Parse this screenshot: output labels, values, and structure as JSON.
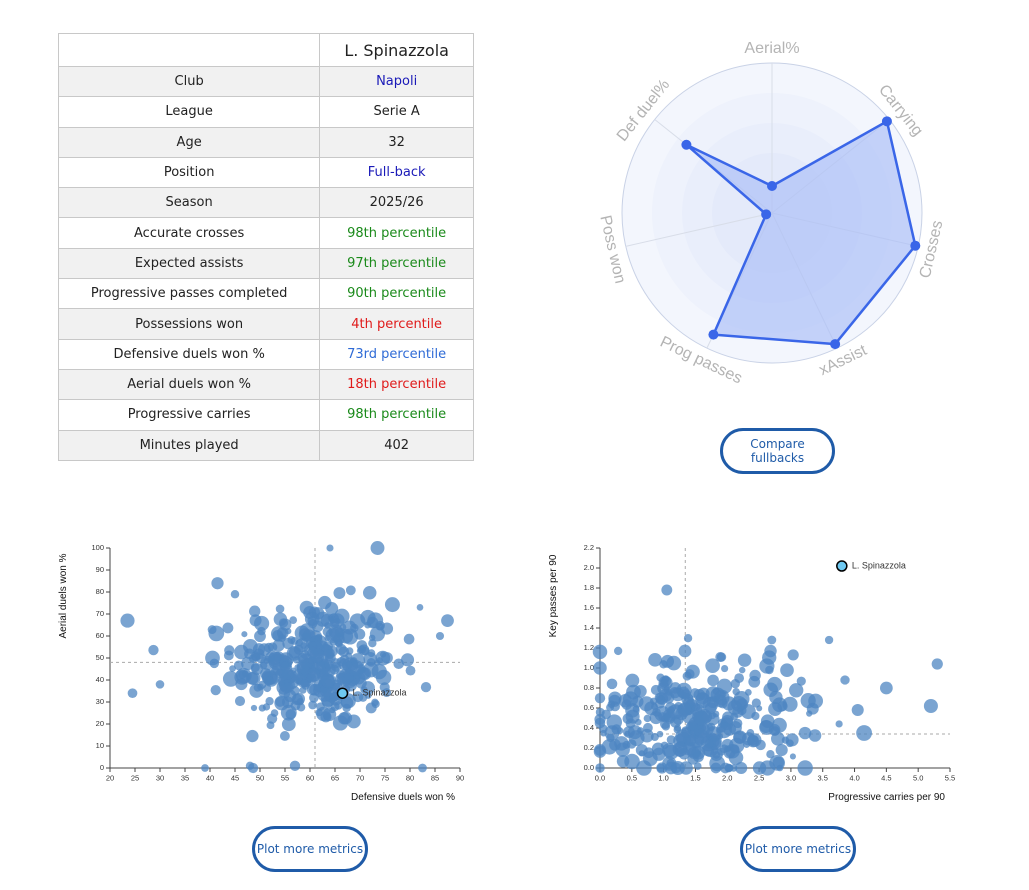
{
  "table": {
    "player": "L. Spinazzola",
    "rows": [
      {
        "label": "Club",
        "value": "Napoli",
        "color": "#1a1ab8"
      },
      {
        "label": "League",
        "value": "Serie A",
        "color": "#222222"
      },
      {
        "label": "Age",
        "value": "32",
        "color": "#222222"
      },
      {
        "label": "Position",
        "value": "Full-back",
        "color": "#1a1ab8"
      },
      {
        "label": "Season",
        "value": "2025/26",
        "color": "#222222"
      },
      {
        "label": "Accurate crosses",
        "value": "98th percentile",
        "color": "#1a8a1a"
      },
      {
        "label": "Expected assists",
        "value": "97th percentile",
        "color": "#1a8a1a"
      },
      {
        "label": "Progressive passes completed",
        "value": "90th percentile",
        "color": "#1a8a1a"
      },
      {
        "label": "Possessions won",
        "value": "4th percentile",
        "color": "#e01b1b"
      },
      {
        "label": "Defensive duels won %",
        "value": "73rd percentile",
        "color": "#2f6bd6"
      },
      {
        "label": "Aerial duels won %",
        "value": "18th percentile",
        "color": "#e01b1b"
      },
      {
        "label": "Progressive carries",
        "value": "98th percentile",
        "color": "#1a8a1a"
      },
      {
        "label": "Minutes played",
        "value": "402",
        "color": "#222222"
      }
    ]
  },
  "buttons": {
    "compare": "Compare fullbacks",
    "plot_more_left": "Plot more metrics",
    "plot_more_right": "Plot more metrics"
  },
  "colors": {
    "accent": "#3a66e8",
    "fill": "#a9bdf7",
    "dots": "#4e86c1",
    "button": "#1f5ba8"
  },
  "chart_data": [
    {
      "type": "radar",
      "axes": [
        "Aerial%",
        "Carrying",
        "Crosses",
        "xAssist",
        "Prog passes",
        "Poss won",
        "Def duel%"
      ],
      "values": [
        18,
        98,
        98,
        97,
        90,
        4,
        73
      ],
      "range": [
        0,
        100
      ]
    },
    {
      "type": "scatter",
      "xlabel": "Defensive duels won %",
      "ylabel": "Aerial duels won %",
      "xlim": [
        20,
        90
      ],
      "ylim": [
        0,
        100
      ],
      "xticks": [
        20,
        25,
        30,
        35,
        40,
        45,
        50,
        55,
        60,
        65,
        70,
        75,
        80,
        85,
        90
      ],
      "yticks": [
        0,
        10,
        20,
        30,
        40,
        50,
        60,
        70,
        80,
        90,
        100
      ],
      "ref_x": 61,
      "ref_y": 48,
      "highlight": {
        "name": "L. Spinazzola",
        "x": 66.5,
        "y": 34
      },
      "cluster": {
        "x_mean": 61,
        "x_sd": 8,
        "y_mean": 47,
        "y_sd": 14,
        "count": 360
      },
      "outliers": [
        [
          23.5,
          67
        ],
        [
          24.5,
          34
        ],
        [
          30,
          38
        ],
        [
          40.5,
          50
        ],
        [
          41.5,
          84
        ],
        [
          45,
          79
        ],
        [
          64,
          100
        ],
        [
          73.5,
          100
        ],
        [
          82,
          73
        ],
        [
          87.5,
          67
        ],
        [
          86,
          60
        ],
        [
          57,
          1
        ],
        [
          82.5,
          0
        ],
        [
          48,
          1
        ],
        [
          39,
          0
        ]
      ]
    },
    {
      "type": "scatter",
      "xlabel": "Progressive carries per 90",
      "ylabel": "Key passes per 90",
      "xlim": [
        0,
        5.5
      ],
      "ylim": [
        0,
        2.2
      ],
      "xticks": [
        0.0,
        0.5,
        1.0,
        1.5,
        2.0,
        2.5,
        3.0,
        3.5,
        4.0,
        4.5,
        5.0,
        5.5
      ],
      "yticks": [
        0.0,
        0.2,
        0.4,
        0.6,
        0.8,
        1.0,
        1.2,
        1.4,
        1.6,
        1.8,
        2.0,
        2.2
      ],
      "ref_x": 1.34,
      "ref_y": 0.34,
      "highlight": {
        "name": "L. Spinazzola",
        "x": 3.8,
        "y": 2.02
      },
      "cluster": {
        "x_mean": 1.5,
        "x_sd": 0.8,
        "y_mean": 0.45,
        "y_sd": 0.3,
        "count": 320
      },
      "outliers": [
        [
          1.05,
          1.78
        ],
        [
          5.3,
          1.04
        ],
        [
          5.2,
          0.62
        ],
        [
          4.5,
          0.8
        ],
        [
          4.15,
          0.35
        ],
        [
          3.6,
          1.28
        ],
        [
          3.85,
          0.88
        ],
        [
          0.0,
          1.0
        ],
        [
          4.05,
          0.58
        ],
        [
          2.7,
          1.28
        ]
      ]
    }
  ]
}
